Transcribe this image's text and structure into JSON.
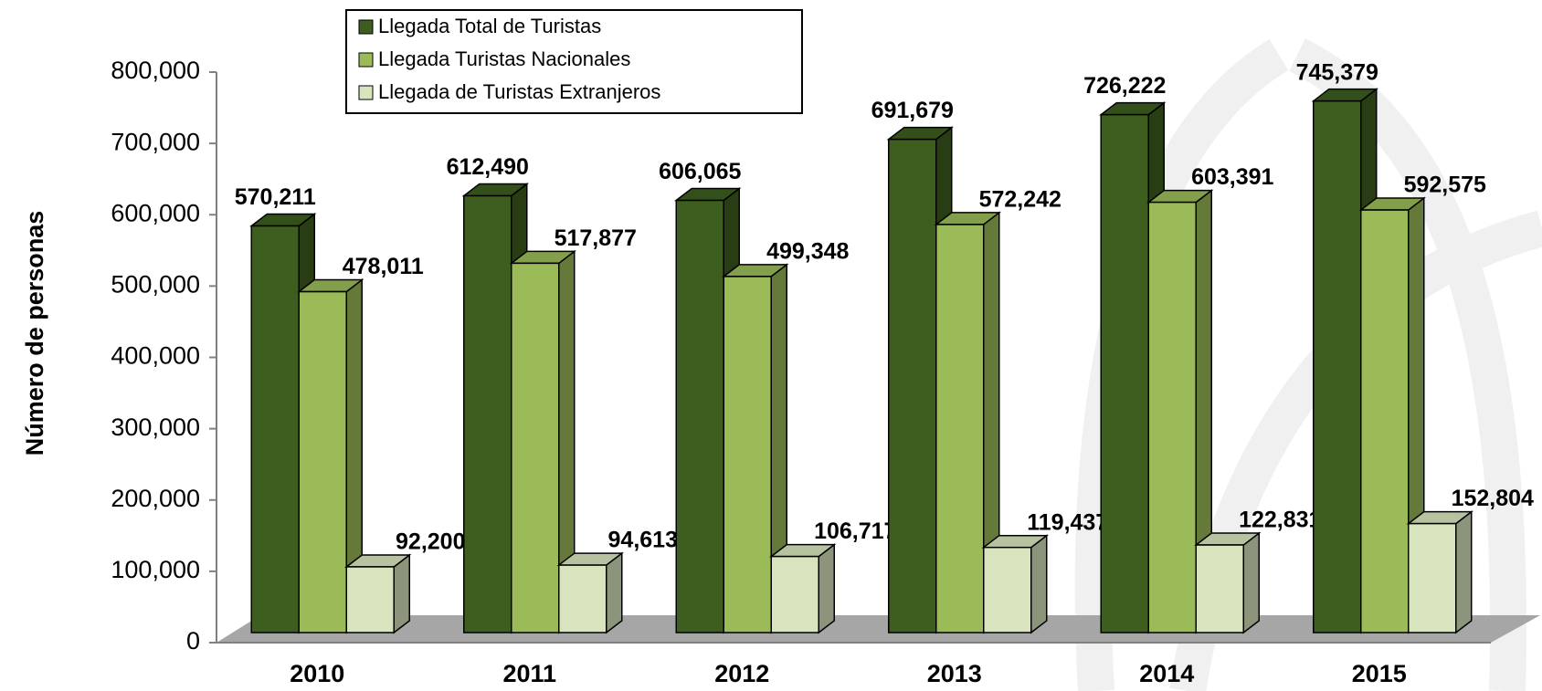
{
  "chart_data": {
    "type": "bar3d",
    "y_axis_label": "Número de personas",
    "categories": [
      "2010",
      "2011",
      "2012",
      "2013",
      "2014",
      "2015"
    ],
    "series": [
      {
        "name": "Llegada Total de Turistas",
        "color": "#3d5e1e",
        "values": [
          570211,
          612490,
          606065,
          691679,
          726222,
          745379
        ],
        "value_labels": [
          "570,211",
          "612,490",
          "606,065",
          "691,679",
          "726,222",
          "745,379"
        ]
      },
      {
        "name": "Llegada  Turistas Nacionales",
        "color": "#9bbb59",
        "values": [
          478011,
          517877,
          499348,
          572242,
          603391,
          592575
        ],
        "value_labels": [
          "478,011",
          "517,877",
          "499,348",
          "572,242",
          "603,391",
          "592,575"
        ]
      },
      {
        "name": "Llegada de Turistas Extranjeros",
        "color": "#d7e4bd",
        "values": [
          92200,
          94613,
          106717,
          119437,
          122831,
          152804
        ],
        "value_labels": [
          "92,200",
          "94,613",
          "106,717",
          "119,437",
          "122,831",
          "152,804"
        ]
      }
    ],
    "ylim": [
      0,
      800000
    ],
    "yticks": [
      0,
      {
        "value": 100000,
        "label": "100,000"
      },
      {
        "value": 200000,
        "label": "200,000"
      },
      {
        "value": 300000,
        "label": "300,000"
      },
      {
        "value": 400000,
        "label": "400,000"
      },
      {
        "value": 500000,
        "label": "500,000"
      },
      {
        "value": 600000,
        "label": "600,000"
      },
      {
        "value": 700000,
        "label": "700,000"
      },
      {
        "value": 800000,
        "label": "800,000"
      }
    ],
    "legend": "top-left"
  }
}
